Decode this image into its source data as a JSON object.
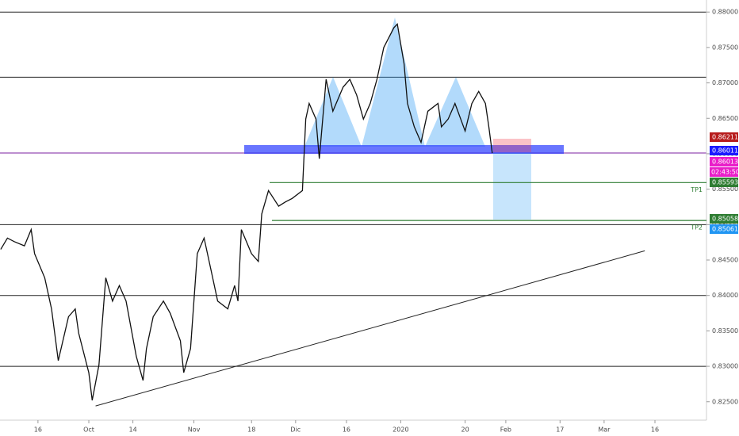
{
  "chart_data": {
    "type": "line",
    "color": "#111111",
    "x": [
      -11,
      -9,
      -7,
      -4,
      -2,
      -1,
      2,
      4,
      6,
      9,
      11,
      12,
      15,
      16,
      18,
      20,
      22,
      24,
      26,
      29,
      31,
      32,
      34,
      37,
      39,
      42,
      43,
      45,
      47,
      49,
      51,
      53,
      56,
      58,
      59,
      60,
      63,
      65,
      66,
      68,
      71,
      73,
      75,
      78,
      79,
      80,
      82,
      83,
      85,
      87,
      90,
      92,
      94,
      96,
      98,
      100,
      102,
      105,
      106,
      108,
      109,
      111,
      113,
      115,
      118,
      119,
      121,
      123,
      126,
      128,
      130,
      132,
      133,
      134
    ],
    "values": [
      0.8465,
      0.8481,
      0.8476,
      0.847,
      0.8493,
      0.8459,
      0.8425,
      0.8381,
      0.8308,
      0.837,
      0.8381,
      0.8347,
      0.8291,
      0.8252,
      0.8302,
      0.8425,
      0.8392,
      0.8414,
      0.8392,
      0.8314,
      0.828,
      0.8325,
      0.837,
      0.8392,
      0.8375,
      0.8336,
      0.8291,
      0.8325,
      0.8459,
      0.8481,
      0.8437,
      0.8392,
      0.8381,
      0.8414,
      0.8392,
      0.8493,
      0.8459,
      0.8448,
      0.8515,
      0.8548,
      0.8526,
      0.8532,
      0.8537,
      0.8548,
      0.8649,
      0.8671,
      0.8649,
      0.8593,
      0.8705,
      0.866,
      0.8694,
      0.8705,
      0.8683,
      0.8649,
      0.8671,
      0.8705,
      0.875,
      0.8778,
      0.8783,
      0.8727,
      0.8671,
      0.8638,
      0.8616,
      0.866,
      0.8671,
      0.8638,
      0.8649,
      0.8671,
      0.8632,
      0.8671,
      0.8688,
      0.8671,
      0.8638,
      0.8601
    ],
    "xlim": [
      -11.2,
      197.2
    ],
    "ylim": [
      0.8224,
      0.8817
    ],
    "xticks": [
      {
        "value": 0,
        "label": "16"
      },
      {
        "value": 15,
        "label": "Oct"
      },
      {
        "value": 28,
        "label": "14"
      },
      {
        "value": 46,
        "label": "Nov"
      },
      {
        "value": 63,
        "label": "18"
      },
      {
        "value": 76,
        "label": "Dic"
      },
      {
        "value": 91,
        "label": "16"
      },
      {
        "value": 107,
        "label": "2020"
      },
      {
        "value": 126,
        "label": "20"
      },
      {
        "value": 138,
        "label": "Feb"
      },
      {
        "value": 154,
        "label": "17"
      },
      {
        "value": 167,
        "label": "Mar"
      },
      {
        "value": 182,
        "label": "16"
      }
    ],
    "yticks": [
      {
        "value": 0.825,
        "label": "0.82500"
      },
      {
        "value": 0.83,
        "label": "0.83000"
      },
      {
        "value": 0.835,
        "label": "0.83500"
      },
      {
        "value": 0.84,
        "label": "0.84000"
      },
      {
        "value": 0.845,
        "label": "0.84500"
      },
      {
        "value": 0.85,
        "label": "0.85000"
      },
      {
        "value": 0.855,
        "label": "0.85500"
      },
      {
        "value": 0.86,
        "label": "0.86000"
      },
      {
        "value": 0.865,
        "label": "0.86500"
      },
      {
        "value": 0.87,
        "label": "0.87000"
      },
      {
        "value": 0.875,
        "label": "0.87500"
      },
      {
        "value": 0.88,
        "label": "0.88000"
      }
    ],
    "hlines": [
      {
        "value": 0.88,
        "color": "#222222"
      },
      {
        "value": 0.8708,
        "color": "#222222"
      },
      {
        "value": 0.8601,
        "color": "#7b1fa2"
      },
      {
        "value": 0.85,
        "color": "#222222"
      },
      {
        "value": 0.84,
        "color": "#222222"
      },
      {
        "value": 0.83,
        "color": "#222222"
      }
    ],
    "targets": [
      {
        "name": "TP1",
        "value": 0.85593,
        "color": "#2e7d32"
      },
      {
        "name": "TP2",
        "value": 0.85058,
        "color": "#2e7d32"
      }
    ],
    "trendline": {
      "x": [
        17,
        179
      ],
      "values": [
        0.8244,
        0.8463
      ]
    },
    "price_tags": [
      {
        "value": 0.86211,
        "color": "#b71c1c"
      },
      {
        "value": 0.86011,
        "color": "#1a1aff"
      },
      {
        "value": 0.86013,
        "color": "#e91ec9"
      },
      {
        "value": 0.85593,
        "color": "#2e7d32"
      },
      {
        "value": 0.85058,
        "color": "#2e7d32"
      },
      {
        "value": 0.85061,
        "color": "#2196f3"
      }
    ],
    "countdown": "02:43:50",
    "countdown_color": "#e91ec9"
  }
}
